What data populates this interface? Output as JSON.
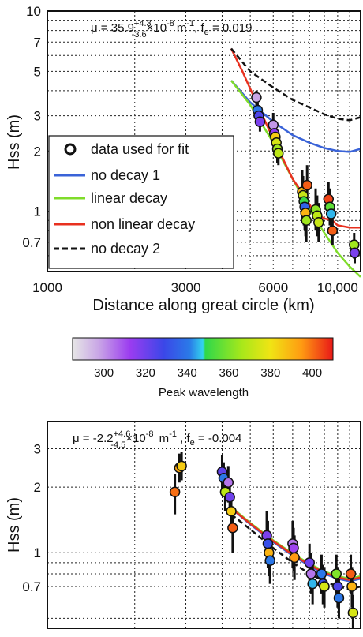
{
  "colors": {
    "no_decay_1": "#3a63d8",
    "linear_decay": "#7fdc2a",
    "non_linear_decay": "#e8301f",
    "no_decay_2": "#111111",
    "grid": "#222222"
  },
  "chart_data": [
    {
      "type": "scatter",
      "panel": "top",
      "x_scale": "log",
      "y_scale": "log",
      "xlim": [
        1000,
        12000
      ],
      "ylim": [
        0.5,
        10
      ],
      "xlabel": "Distance along great circle (km)",
      "ylabel": "Hss  (m)",
      "x_ticks": [
        1000,
        3000,
        6000,
        10000
      ],
      "x_tick_labels": [
        "1000",
        "3000",
        "6000",
        "10,000"
      ],
      "y_ticks": [
        0.7,
        1,
        2,
        3,
        5,
        7,
        10
      ],
      "y_tick_labels": [
        "0.7",
        "1",
        "2",
        "3",
        "5",
        "7",
        "10"
      ],
      "grid": true,
      "annotation": {
        "prefix": "μ = 35.9",
        "sup": "+4.3",
        "sub": "-3.6",
        "suffix": "×10",
        "exp": "-8",
        "unit": "m",
        "unit_exp": "-1",
        "fe": ", f",
        "fe_sub": "e",
        "fe_val": " = 0.019"
      },
      "legend": {
        "placement": "left-center",
        "entries": [
          {
            "label": "data used for fit",
            "style": "marker"
          },
          {
            "label": "no decay 1",
            "style": "line",
            "color_key": "no_decay_1"
          },
          {
            "label": "linear decay",
            "style": "line",
            "color_key": "linear_decay"
          },
          {
            "label": "non linear decay",
            "style": "line",
            "color_key": "non_linear_decay"
          },
          {
            "label": "no decay 2",
            "style": "dashed",
            "color_key": "no_decay_2"
          }
        ]
      },
      "series": [
        {
          "key": "no_decay_1",
          "x": [
            4300,
            5000,
            6000,
            7000,
            8000,
            9000,
            10000,
            11000,
            12000
          ],
          "y": [
            4.5,
            3.5,
            2.8,
            2.4,
            2.2,
            2.07,
            2.0,
            1.98,
            2.05
          ]
        },
        {
          "key": "linear_decay",
          "x": [
            4300,
            5000,
            6000,
            7000,
            8000,
            9000,
            10000,
            11000,
            12000
          ],
          "y": [
            4.5,
            3.4,
            2.2,
            1.45,
            1.02,
            0.78,
            0.62,
            0.53,
            0.47
          ]
        },
        {
          "key": "non_linear_decay",
          "x": [
            4300,
            4700,
            5200,
            6000,
            7000,
            7800,
            8200,
            8600,
            9000,
            9600,
            10000,
            11000,
            12000
          ],
          "y": [
            6.5,
            5.0,
            3.6,
            2.3,
            1.45,
            1.15,
            1.02,
            0.95,
            0.92,
            0.9,
            0.85,
            0.83,
            0.83
          ]
        },
        {
          "key": "no_decay_2",
          "x": [
            4300,
            5000,
            6000,
            7000,
            8000,
            9000,
            10000,
            11000,
            12000
          ],
          "y": [
            6.5,
            5.0,
            4.15,
            3.6,
            3.3,
            3.05,
            2.9,
            2.85,
            2.95
          ]
        }
      ],
      "points": [
        {
          "x": 5250,
          "y": 3.7,
          "lam": 298,
          "lo": 3.4,
          "hi": 4.0
        },
        {
          "x": 5300,
          "y": 3.2,
          "lam": 340,
          "lo": 2.9,
          "hi": 3.5
        },
        {
          "x": 5350,
          "y": 3.0,
          "lam": 325,
          "lo": 2.7,
          "hi": 3.3
        },
        {
          "x": 5400,
          "y": 2.8,
          "lam": 318,
          "lo": 2.5,
          "hi": 3.1
        },
        {
          "x": 6000,
          "y": 2.7,
          "lam": 300,
          "lo": 2.3,
          "hi": 3.1
        },
        {
          "x": 6050,
          "y": 2.45,
          "lam": 315,
          "lo": 2.1,
          "hi": 2.8
        },
        {
          "x": 6100,
          "y": 2.35,
          "lam": 385,
          "lo": 2.0,
          "hi": 2.7
        },
        {
          "x": 6150,
          "y": 2.2,
          "lam": 375,
          "lo": 1.9,
          "hi": 2.5
        },
        {
          "x": 6200,
          "y": 2.05,
          "lam": 365,
          "lo": 1.75,
          "hi": 2.4
        },
        {
          "x": 6250,
          "y": 1.95,
          "lam": 370,
          "lo": 1.7,
          "hi": 2.25
        },
        {
          "x": 7550,
          "y": 1.25,
          "lam": 390,
          "lo": 0.9,
          "hi": 1.6
        },
        {
          "x": 7600,
          "y": 1.2,
          "lam": 372,
          "lo": 0.95,
          "hi": 1.5
        },
        {
          "x": 7650,
          "y": 1.12,
          "lam": 350,
          "lo": 0.85,
          "hi": 1.4
        },
        {
          "x": 7700,
          "y": 1.05,
          "lam": 335,
          "lo": 0.8,
          "hi": 1.35
        },
        {
          "x": 7750,
          "y": 0.98,
          "lam": 390,
          "lo": 0.75,
          "hi": 1.25
        },
        {
          "x": 7800,
          "y": 0.9,
          "lam": 365,
          "lo": 0.7,
          "hi": 1.15
        },
        {
          "x": 7850,
          "y": 1.35,
          "lam": 402,
          "lo": 1.05,
          "hi": 1.7
        },
        {
          "x": 8400,
          "y": 1.02,
          "lam": 362,
          "lo": 0.8,
          "hi": 1.3
        },
        {
          "x": 8500,
          "y": 0.95,
          "lam": 370,
          "lo": 0.75,
          "hi": 1.2
        },
        {
          "x": 8600,
          "y": 0.88,
          "lam": 372,
          "lo": 0.7,
          "hi": 1.1
        },
        {
          "x": 9300,
          "y": 1.15,
          "lam": 405,
          "lo": 0.95,
          "hi": 1.4
        },
        {
          "x": 9400,
          "y": 1.05,
          "lam": 355,
          "lo": 0.85,
          "hi": 1.3
        },
        {
          "x": 9500,
          "y": 0.97,
          "lam": 345,
          "lo": 0.8,
          "hi": 1.2
        },
        {
          "x": 9600,
          "y": 0.8,
          "lam": 402,
          "lo": 0.68,
          "hi": 0.95
        },
        {
          "x": 11400,
          "y": 0.68,
          "lam": 365,
          "lo": 0.58,
          "hi": 0.78
        },
        {
          "x": 11450,
          "y": 0.62,
          "lam": 318,
          "lo": 0.55,
          "hi": 0.7
        }
      ]
    },
    {
      "type": "colorbar",
      "label": "Peak wavelength",
      "range": [
        285,
        410
      ],
      "ticks": [
        300,
        320,
        340,
        360,
        380,
        400
      ],
      "tick_labels": [
        "300",
        "320",
        "340",
        "360",
        "380",
        "400"
      ]
    },
    {
      "type": "scatter",
      "panel": "bottom",
      "x_scale": "log",
      "y_scale": "log",
      "xlim": [
        1000,
        12000
      ],
      "ylim": [
        0.45,
        4
      ],
      "ylabel": "Hss  (m)",
      "y_ticks": [
        0.7,
        1,
        2,
        3
      ],
      "y_tick_labels": [
        "0.7",
        "1",
        "2",
        "3"
      ],
      "grid": true,
      "annotation": {
        "prefix": "μ = -2.2",
        "sup": "+4.6",
        "sub": "-4.5",
        "suffix": "×10",
        "exp": "-8",
        "unit": " m",
        "unit_exp": "-1",
        "fe": " , f",
        "fe_sub": "e",
        "fe_val": " = -0.004"
      },
      "series": [
        {
          "key": "no_decay_1",
          "x": [
            4300,
            5000,
            6000,
            7000,
            8000,
            9000,
            10000,
            11000,
            12000
          ],
          "y": [
            1.6,
            1.35,
            1.12,
            0.97,
            0.87,
            0.8,
            0.76,
            0.74,
            0.76
          ]
        },
        {
          "key": "linear_decay",
          "x": [
            4300,
            5000,
            6000,
            7000,
            8000,
            9000,
            10000,
            11000,
            12000
          ],
          "y": [
            1.62,
            1.37,
            1.14,
            0.99,
            0.89,
            0.82,
            0.78,
            0.76,
            0.78
          ]
        },
        {
          "key": "non_linear_decay",
          "x": [
            4300,
            5000,
            6000,
            7000,
            8000,
            9000,
            10000,
            11000,
            12000
          ],
          "y": [
            1.6,
            1.36,
            1.13,
            0.98,
            0.88,
            0.81,
            0.77,
            0.75,
            0.77
          ]
        },
        {
          "key": "no_decay_2",
          "x": [
            4300,
            5000,
            6000,
            7000,
            8000,
            9000,
            10000,
            11000,
            12000
          ],
          "y": [
            1.5,
            1.28,
            1.05,
            0.9,
            0.8,
            0.74,
            0.7,
            0.68,
            0.7
          ]
        }
      ],
      "points": [
        {
          "x": 2750,
          "y": 1.9,
          "lam": 400,
          "lo": 1.5,
          "hi": 2.3
        },
        {
          "x": 2850,
          "y": 2.45,
          "lam": 392,
          "lo": 2.1,
          "hi": 2.85
        },
        {
          "x": 2900,
          "y": 2.5,
          "lam": 385,
          "lo": 2.15,
          "hi": 2.9
        },
        {
          "x": 4000,
          "y": 2.35,
          "lam": 322,
          "lo": 1.9,
          "hi": 2.8
        },
        {
          "x": 4050,
          "y": 2.2,
          "lam": 340,
          "lo": 1.8,
          "hi": 2.6
        },
        {
          "x": 4100,
          "y": 1.9,
          "lam": 370,
          "lo": 1.55,
          "hi": 2.3
        },
        {
          "x": 4200,
          "y": 2.1,
          "lam": 305,
          "lo": 1.7,
          "hi": 2.5
        },
        {
          "x": 4250,
          "y": 1.8,
          "lam": 320,
          "lo": 1.5,
          "hi": 2.2
        },
        {
          "x": 4300,
          "y": 1.55,
          "lam": 385,
          "lo": 1.25,
          "hi": 1.9
        },
        {
          "x": 4350,
          "y": 1.3,
          "lam": 402,
          "lo": 1.0,
          "hi": 1.6
        },
        {
          "x": 5700,
          "y": 1.2,
          "lam": 318,
          "lo": 0.9,
          "hi": 1.55
        },
        {
          "x": 5750,
          "y": 1.1,
          "lam": 330,
          "lo": 0.85,
          "hi": 1.4
        },
        {
          "x": 5800,
          "y": 1.0,
          "lam": 390,
          "lo": 0.78,
          "hi": 1.25
        },
        {
          "x": 5850,
          "y": 0.92,
          "lam": 340,
          "lo": 0.72,
          "hi": 1.15
        },
        {
          "x": 7000,
          "y": 1.1,
          "lam": 305,
          "lo": 0.85,
          "hi": 1.4
        },
        {
          "x": 7050,
          "y": 1.05,
          "lam": 312,
          "lo": 0.82,
          "hi": 1.3
        },
        {
          "x": 7100,
          "y": 0.95,
          "lam": 395,
          "lo": 0.75,
          "hi": 1.2
        },
        {
          "x": 8000,
          "y": 0.9,
          "lam": 320,
          "lo": 0.72,
          "hi": 1.1
        },
        {
          "x": 8100,
          "y": 0.8,
          "lam": 305,
          "lo": 0.65,
          "hi": 1.0
        },
        {
          "x": 8200,
          "y": 0.72,
          "lam": 345,
          "lo": 0.58,
          "hi": 0.9
        },
        {
          "x": 8800,
          "y": 0.8,
          "lam": 340,
          "lo": 0.65,
          "hi": 0.98
        },
        {
          "x": 8900,
          "y": 0.72,
          "lam": 330,
          "lo": 0.58,
          "hi": 0.88
        },
        {
          "x": 9000,
          "y": 0.7,
          "lam": 375,
          "lo": 0.56,
          "hi": 0.86
        },
        {
          "x": 9900,
          "y": 0.8,
          "lam": 360,
          "lo": 0.65,
          "hi": 0.98
        },
        {
          "x": 10000,
          "y": 0.7,
          "lam": 325,
          "lo": 0.56,
          "hi": 0.86
        },
        {
          "x": 10100,
          "y": 0.62,
          "lam": 340,
          "lo": 0.5,
          "hi": 0.76
        },
        {
          "x": 11100,
          "y": 0.8,
          "lam": 402,
          "lo": 0.65,
          "hi": 0.98
        },
        {
          "x": 11200,
          "y": 0.7,
          "lam": 390,
          "lo": 0.56,
          "hi": 0.86
        },
        {
          "x": 11300,
          "y": 0.53,
          "lam": 375,
          "lo": 0.45,
          "hi": 0.64
        }
      ]
    }
  ]
}
